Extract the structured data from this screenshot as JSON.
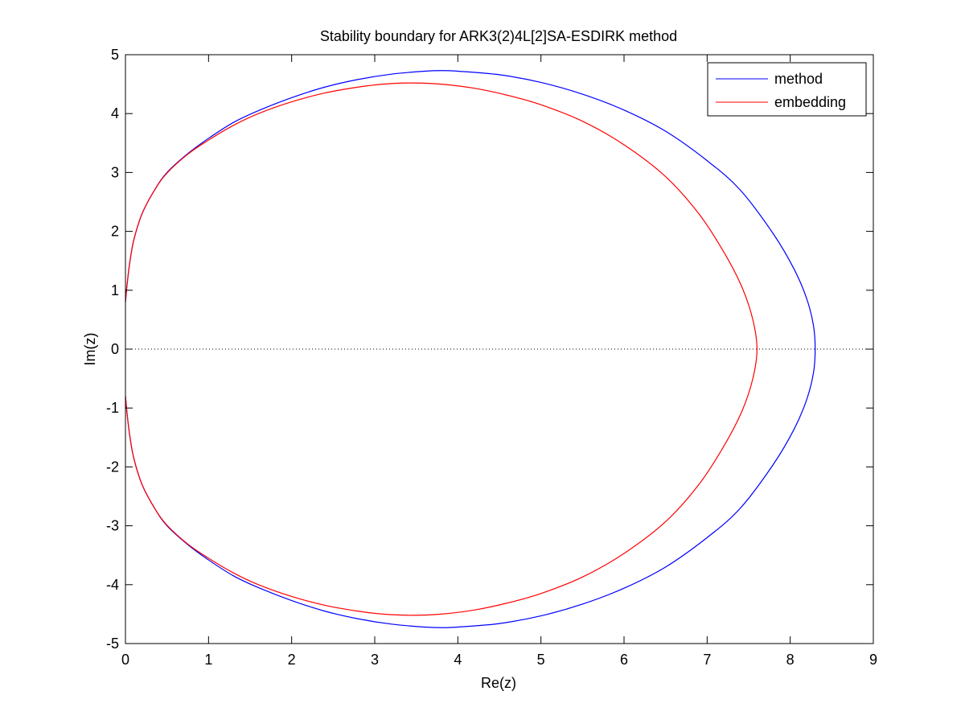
{
  "chart_data": {
    "type": "line",
    "title": "Stability boundary for ARK3(2)4L[2]SA-ESDIRK method",
    "xlabel": "Re(z)",
    "ylabel": "Im(z)",
    "xlim": [
      0,
      9
    ],
    "ylim": [
      -5,
      5
    ],
    "xticks": [
      0,
      1,
      2,
      3,
      4,
      5,
      6,
      7,
      8,
      9
    ],
    "yticks": [
      -5,
      -4,
      -3,
      -2,
      -1,
      0,
      1,
      2,
      3,
      4,
      5
    ],
    "xtick_labels": [
      "0",
      "1",
      "2",
      "3",
      "4",
      "5",
      "6",
      "7",
      "8",
      "9"
    ],
    "ytick_labels": [
      "-5",
      "-4",
      "-3",
      "-2",
      "-1",
      "0",
      "1",
      "2",
      "3",
      "4",
      "5"
    ],
    "grid": false,
    "legend": {
      "position": "top-right"
    },
    "reference_line": {
      "y": 0,
      "style": "dotted",
      "color": "#000000"
    },
    "series": [
      {
        "name": "method",
        "color": "#0000ff",
        "x": [
          0.0,
          0.02,
          0.05,
          0.1,
          0.2,
          0.35,
          0.5,
          0.75,
          1.0,
          1.3,
          1.6,
          2.0,
          2.4,
          2.8,
          3.2,
          3.6,
          3.8,
          4.0,
          4.5,
          5.0,
          5.5,
          6.0,
          6.5,
          7.0,
          7.4,
          7.8,
          8.05,
          8.2,
          8.28,
          8.3,
          8.28,
          8.2,
          8.05,
          7.8,
          7.4,
          7.0,
          6.5,
          6.0,
          5.5,
          5.0,
          4.5,
          4.0,
          3.8,
          3.6,
          3.2,
          2.8,
          2.4,
          2.0,
          1.6,
          1.3,
          1.0,
          0.75,
          0.5,
          0.35,
          0.2,
          0.1,
          0.05,
          0.02,
          0.0
        ],
        "y": [
          0.8,
          1.1,
          1.45,
          1.85,
          2.3,
          2.7,
          3.0,
          3.32,
          3.58,
          3.85,
          4.05,
          4.27,
          4.45,
          4.58,
          4.67,
          4.72,
          4.73,
          4.72,
          4.66,
          4.53,
          4.33,
          4.06,
          3.7,
          3.2,
          2.7,
          1.95,
          1.35,
          0.85,
          0.4,
          0.0,
          -0.4,
          -0.85,
          -1.35,
          -1.95,
          -2.7,
          -3.2,
          -3.7,
          -4.06,
          -4.33,
          -4.53,
          -4.66,
          -4.72,
          -4.73,
          -4.72,
          -4.67,
          -4.58,
          -4.45,
          -4.27,
          -4.05,
          -3.85,
          -3.58,
          -3.32,
          -3.0,
          -2.7,
          -2.3,
          -1.85,
          -1.45,
          -1.1,
          -0.8
        ]
      },
      {
        "name": "embedding",
        "color": "#ff0000",
        "x": [
          0.0,
          0.02,
          0.05,
          0.1,
          0.2,
          0.35,
          0.5,
          0.75,
          1.0,
          1.3,
          1.6,
          2.0,
          2.4,
          2.8,
          3.1,
          3.45,
          3.8,
          4.2,
          4.6,
          5.0,
          5.5,
          6.0,
          6.5,
          6.9,
          7.2,
          7.42,
          7.55,
          7.6,
          7.55,
          7.42,
          7.2,
          6.9,
          6.5,
          6.0,
          5.5,
          5.0,
          4.6,
          4.2,
          3.8,
          3.45,
          3.1,
          2.8,
          2.4,
          2.0,
          1.6,
          1.3,
          1.0,
          0.75,
          0.5,
          0.35,
          0.2,
          0.1,
          0.05,
          0.02,
          0.0
        ],
        "y": [
          0.8,
          1.1,
          1.45,
          1.85,
          2.3,
          2.7,
          2.99,
          3.31,
          3.55,
          3.8,
          4.0,
          4.2,
          4.35,
          4.45,
          4.5,
          4.52,
          4.5,
          4.43,
          4.31,
          4.15,
          3.87,
          3.47,
          2.93,
          2.3,
          1.65,
          1.05,
          0.5,
          0.0,
          -0.5,
          -1.05,
          -1.65,
          -2.3,
          -2.93,
          -3.47,
          -3.87,
          -4.15,
          -4.31,
          -4.43,
          -4.5,
          -4.52,
          -4.5,
          -4.45,
          -4.35,
          -4.2,
          -4.0,
          -3.8,
          -3.55,
          -3.31,
          -2.99,
          -2.7,
          -2.3,
          -1.85,
          -1.45,
          -1.1,
          -0.8
        ]
      }
    ]
  }
}
